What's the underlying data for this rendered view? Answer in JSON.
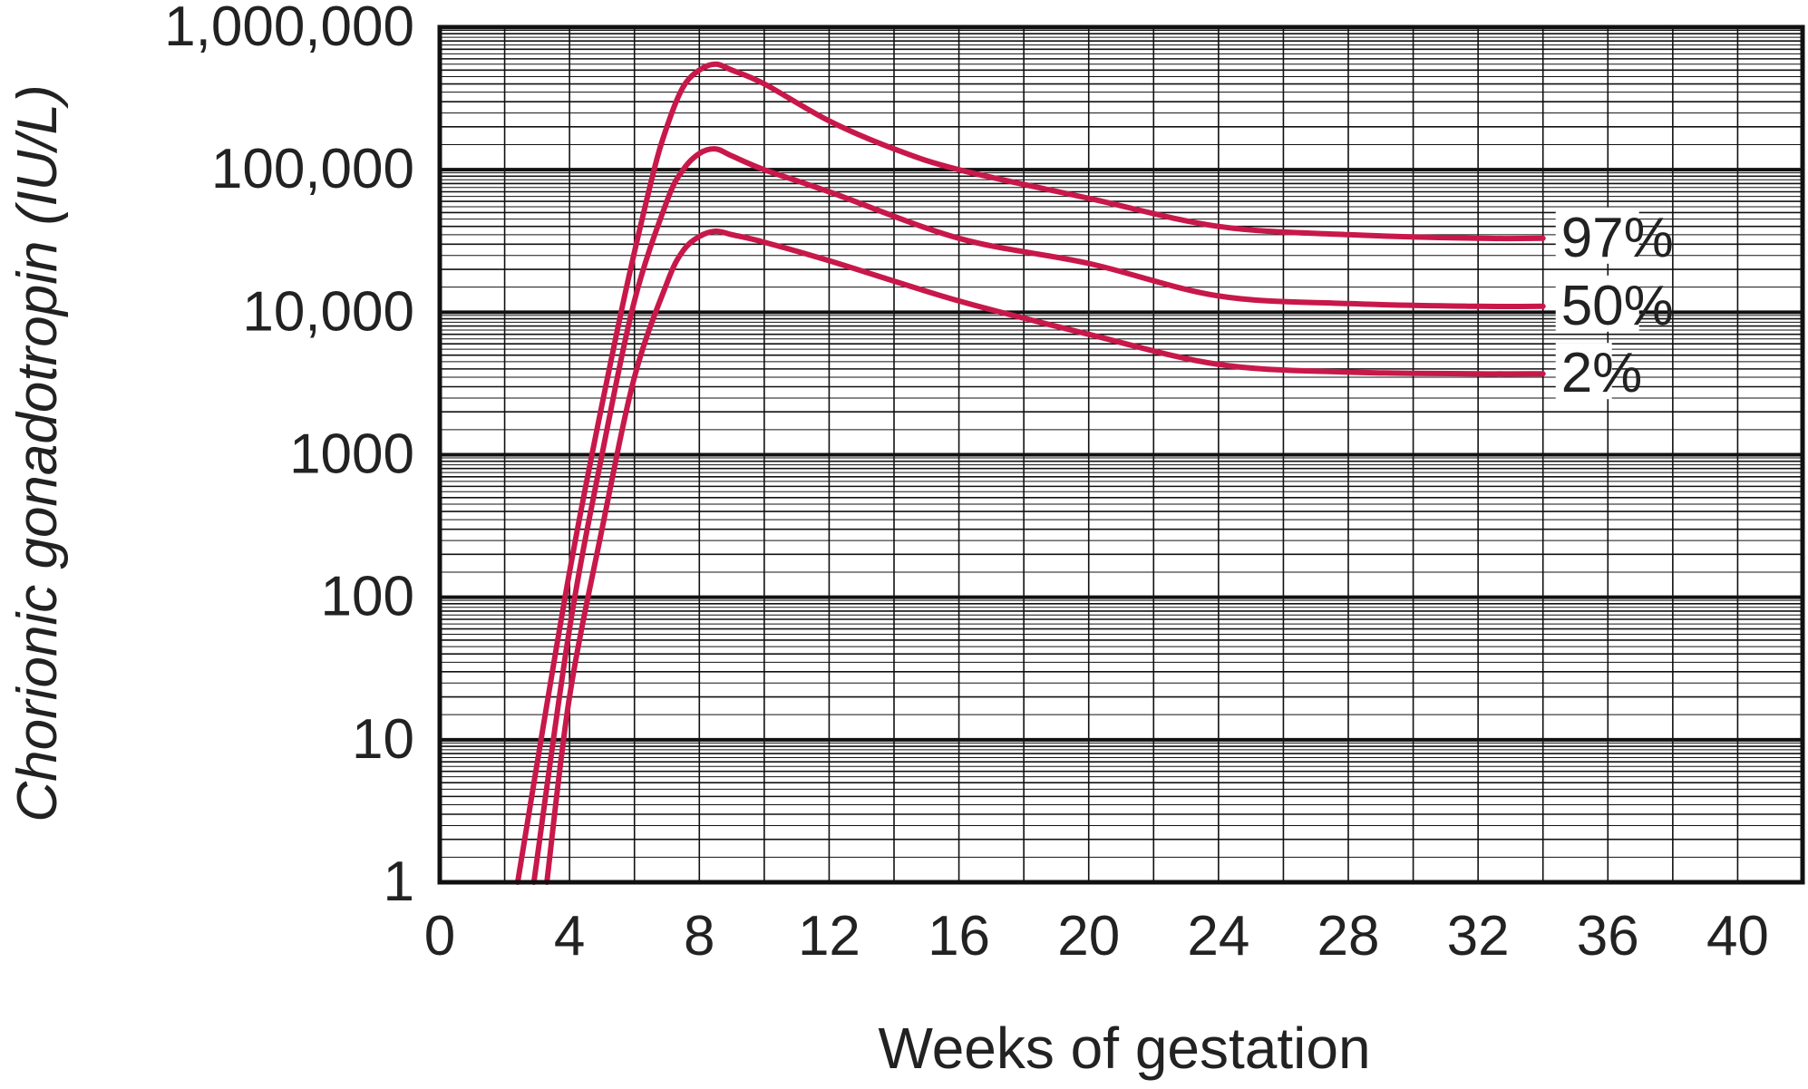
{
  "chart_data": {
    "type": "line",
    "title": "",
    "xlabel": "Weeks of gestation",
    "ylabel": "Chorionic gonadotropin (IU/L)",
    "xlim": [
      0,
      42
    ],
    "ylim": [
      1,
      1000000
    ],
    "yscale": "log",
    "grid": true,
    "x_ticks": [
      0,
      4,
      8,
      12,
      16,
      20,
      24,
      28,
      32,
      36,
      40
    ],
    "x_tick_labels": [
      "0",
      "4",
      "8",
      "12",
      "16",
      "20",
      "24",
      "28",
      "32",
      "36",
      "40"
    ],
    "y_ticks": [
      1,
      10,
      100,
      1000,
      10000,
      100000,
      1000000
    ],
    "y_tick_labels": [
      "1",
      "10",
      "100",
      "1000",
      "10,000",
      "100,000",
      "1,000,000"
    ],
    "series_color": "#c8184a",
    "series": [
      {
        "name": "97%",
        "x": [
          2.4,
          4,
          5.5,
          6.5,
          7,
          7.5,
          8,
          8.5,
          9,
          10,
          12,
          14,
          16,
          20,
          24,
          28,
          32,
          34
        ],
        "y": [
          1,
          150,
          8000,
          80000,
          200000,
          380000,
          500000,
          550000,
          500000,
          400000,
          220000,
          140000,
          100000,
          63000,
          40000,
          35000,
          33000,
          33000
        ]
      },
      {
        "name": "50%",
        "x": [
          2.9,
          4,
          5,
          6,
          7,
          7.5,
          8,
          8.5,
          9,
          10,
          12,
          16,
          20,
          24,
          28,
          32,
          34
        ],
        "y": [
          1,
          60,
          1000,
          12000,
          60000,
          100000,
          130000,
          140000,
          125000,
          100000,
          70000,
          33000,
          22000,
          13000,
          11500,
          11000,
          11000
        ]
      },
      {
        "name": "2%",
        "x": [
          3.3,
          4,
          5,
          6,
          7,
          7.5,
          8,
          8.5,
          9,
          10,
          12,
          16,
          20,
          24,
          28,
          32,
          34
        ],
        "y": [
          1,
          20,
          300,
          3500,
          16000,
          27000,
          34000,
          37000,
          35000,
          31000,
          23000,
          12000,
          7000,
          4300,
          3800,
          3700,
          3700
        ]
      }
    ]
  }
}
